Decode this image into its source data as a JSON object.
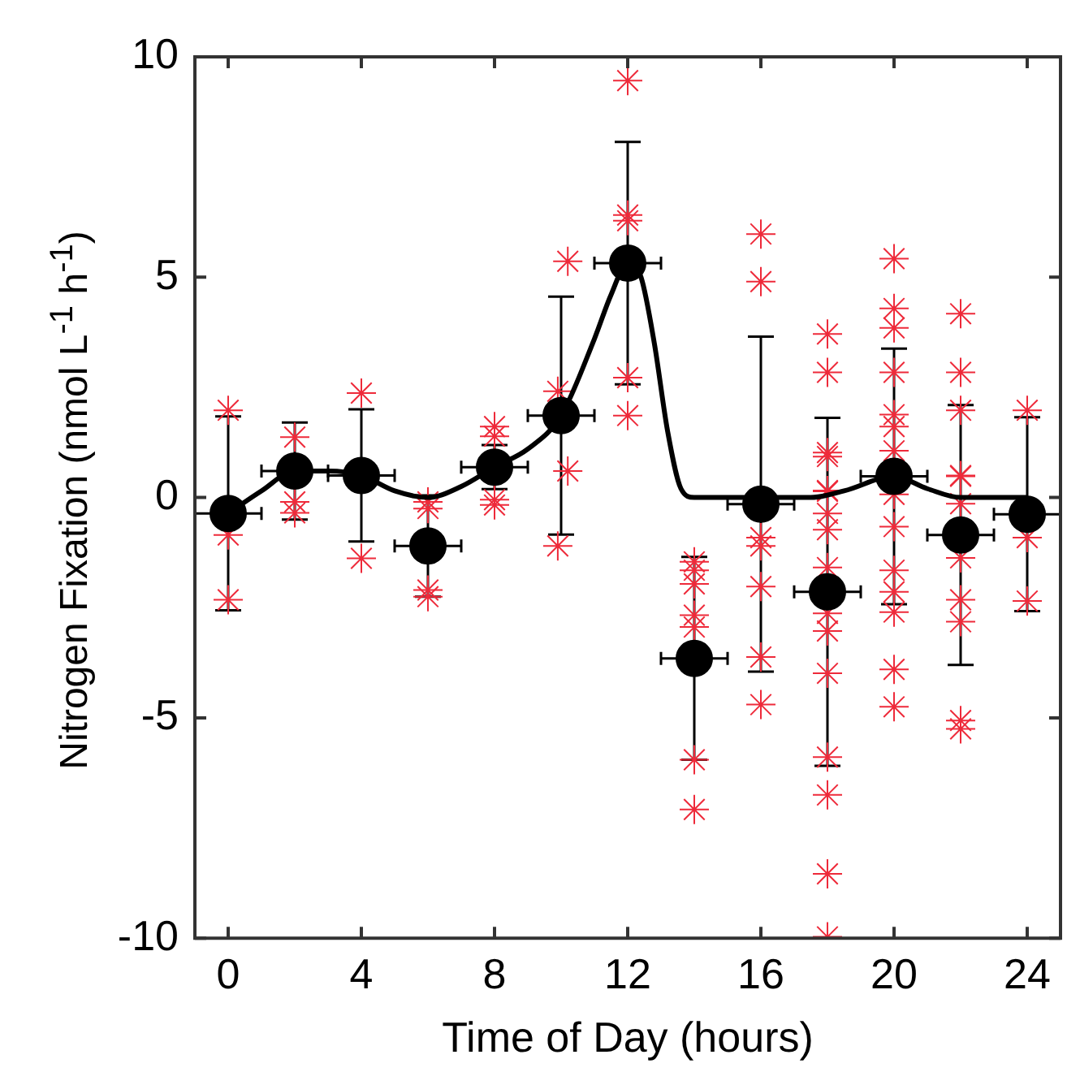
{
  "chart_data": {
    "type": "scatter",
    "xlabel": "Time of Day (hours)",
    "ylabel": "Nitrogen Fixation (nmol L$^{-1}$ h$^{-1}$)",
    "xlim": [
      -1,
      25
    ],
    "ylim": [
      -10,
      10
    ],
    "xticks": [
      0,
      4,
      8,
      12,
      16,
      20,
      24
    ],
    "yticks": [
      -10,
      -5,
      0,
      5,
      10
    ],
    "series": [
      {
        "type": "scatter",
        "marker": "cross",
        "color": "#ee2a3a",
        "x": [
          0,
          0,
          0,
          2,
          2,
          2,
          4,
          4,
          6,
          6,
          6,
          6,
          8,
          8,
          8,
          8,
          10.2,
          9.9,
          10.2,
          9.9,
          12,
          12,
          12,
          12,
          12,
          14,
          14,
          14,
          14,
          14,
          14,
          14,
          16,
          16,
          16,
          16,
          16,
          16,
          16,
          18,
          18,
          18,
          18,
          18,
          18,
          18,
          18,
          18,
          18,
          18,
          18,
          18,
          18,
          18,
          18,
          20,
          20,
          20,
          20,
          20,
          20,
          20,
          20,
          20,
          20,
          20,
          20,
          20,
          20,
          22,
          22,
          22,
          22,
          22,
          22,
          22,
          22,
          22,
          22,
          22,
          24,
          24,
          24
        ],
        "values": [
          1.98,
          -0.85,
          -2.32,
          1.37,
          -0.1,
          -0.35,
          2.37,
          -1.38,
          -0.1,
          -0.25,
          -2.1,
          -2.25,
          1.61,
          1.39,
          -0.05,
          -0.17,
          5.36,
          2.41,
          0.6,
          -1.1,
          9.46,
          6.41,
          6.28,
          2.72,
          1.86,
          -1.46,
          -1.65,
          -1.96,
          -2.67,
          -2.94,
          -5.95,
          -7.08,
          5.98,
          4.9,
          -0.91,
          -1.1,
          -2.02,
          -3.62,
          -4.7,
          3.71,
          2.84,
          1.02,
          0.93,
          0.16,
          0.14,
          -0.36,
          -0.73,
          -1.59,
          -2.63,
          -3.03,
          -3.99,
          -5.89,
          -6.75,
          -8.54,
          -9.97,
          5.42,
          4.29,
          3.85,
          2.84,
          1.88,
          1.61,
          1.06,
          0.07,
          -0.66,
          -1.65,
          -2.14,
          -2.6,
          -3.9,
          -4.75,
          4.17,
          2.84,
          1.98,
          0.5,
          0.48,
          -0.14,
          -1.37,
          -2.32,
          -2.82,
          -5.06,
          -5.25,
          1.98,
          -0.91,
          -2.35
        ]
      },
      {
        "type": "line",
        "marker": "none",
        "line_style": "solid",
        "color": "#000000",
        "x": [
          0,
          1,
          2,
          3,
          4,
          5,
          6,
          7,
          8,
          9,
          10,
          11,
          11.5,
          12,
          12.4,
          12.8,
          13.2,
          13.6,
          14,
          16,
          17.5,
          18.5,
          20,
          21,
          22,
          24
        ],
        "values": [
          -0.36,
          0.15,
          0.6,
          0.6,
          0.5,
          0.15,
          0,
          0.25,
          0.69,
          1.1,
          1.86,
          3.6,
          4.6,
          5.32,
          5,
          3.5,
          1.5,
          0.2,
          0,
          0,
          0,
          0.15,
          0.48,
          0.2,
          0,
          0
        ]
      },
      {
        "type": "scatter",
        "marker": "circle",
        "color": "#000000",
        "x": [
          0,
          2,
          4,
          6,
          8,
          10,
          12,
          14,
          16,
          18,
          20,
          22,
          24
        ],
        "values": [
          -0.36,
          0.6,
          0.5,
          -1.1,
          0.69,
          1.86,
          5.32,
          -3.65,
          -0.15,
          -2.14,
          0.48,
          -0.85,
          -0.38
        ],
        "errors": [
          2.2,
          1.1,
          1.5,
          1.15,
          0.5,
          2.7,
          2.75,
          2.3,
          3.8,
          3.95,
          2.9,
          2.95,
          2.2
        ],
        "xerrors": [
          1,
          1,
          1,
          1,
          1,
          1,
          1,
          1,
          1,
          1,
          1,
          1,
          1
        ]
      }
    ]
  }
}
